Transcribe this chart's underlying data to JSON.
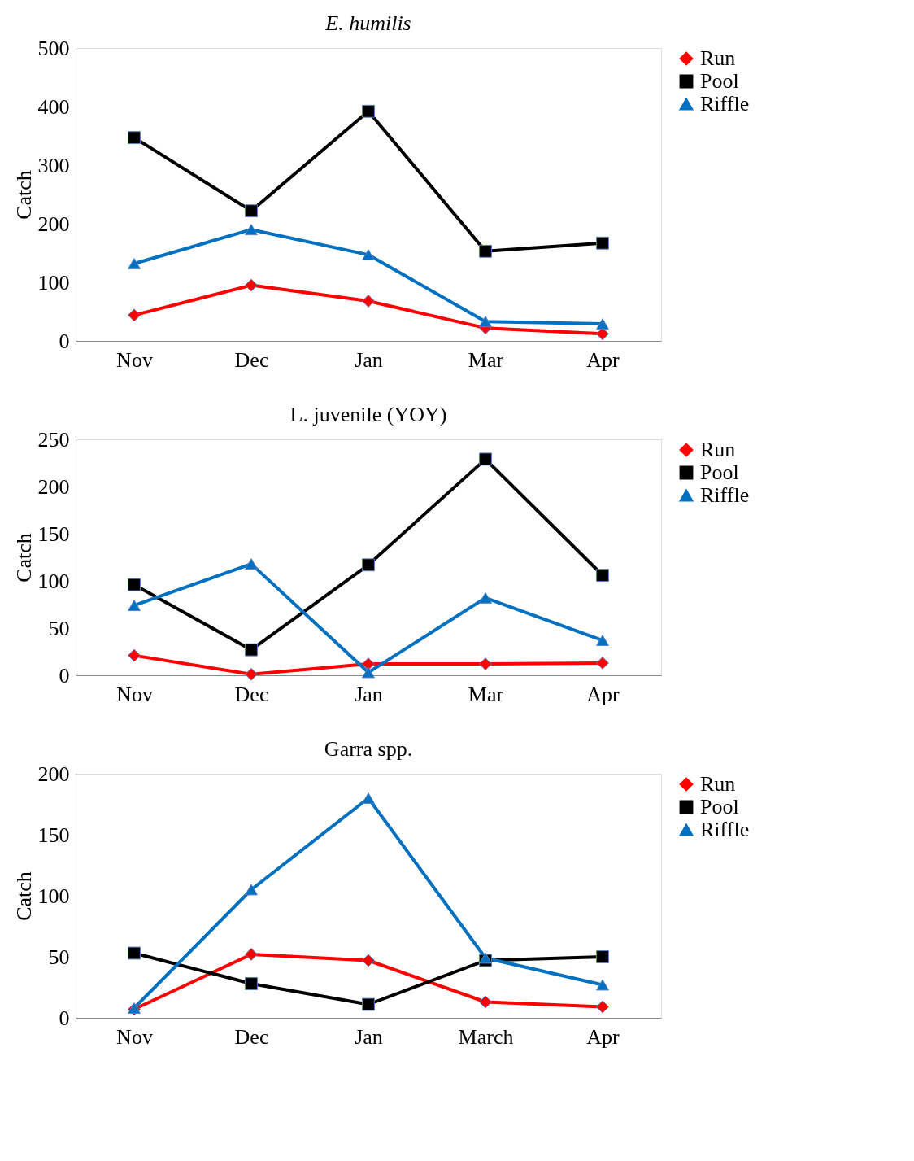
{
  "chart_data": [
    {
      "type": "line",
      "title": "E. humilis",
      "ylabel": "Catch",
      "categories": [
        "Nov",
        "Dec",
        "Jan",
        "Mar",
        "Apr"
      ],
      "ylim": [
        0,
        500
      ],
      "yticks": [
        0,
        100,
        200,
        300,
        400,
        500
      ],
      "grid": false,
      "legend": "right",
      "series": [
        {
          "name": "Run",
          "color": "#ff0000",
          "marker": "diamond",
          "values": [
            44,
            95,
            68,
            22,
            12
          ]
        },
        {
          "name": "Pool",
          "color": "#000000",
          "marker": "square",
          "values": [
            347,
            222,
            392,
            153,
            167
          ]
        },
        {
          "name": "Riffle",
          "color": "#0070c0",
          "marker": "triangle",
          "values": [
            132,
            190,
            147,
            33,
            29
          ]
        }
      ]
    },
    {
      "type": "line",
      "title": "L. juvenile (YOY)",
      "ylabel": "Catch",
      "categories": [
        "Nov",
        "Dec",
        "Jan",
        "Mar",
        "Apr"
      ],
      "ylim": [
        0,
        250
      ],
      "yticks": [
        0,
        50,
        100,
        150,
        200,
        250
      ],
      "grid": false,
      "legend": "right",
      "series": [
        {
          "name": "Run",
          "color": "#ff0000",
          "marker": "diamond",
          "values": [
            21,
            1,
            12,
            12,
            13
          ]
        },
        {
          "name": "Pool",
          "color": "#000000",
          "marker": "square",
          "values": [
            96,
            27,
            117,
            229,
            106
          ]
        },
        {
          "name": "Riffle",
          "color": "#0070c0",
          "marker": "triangle",
          "values": [
            74,
            118,
            3,
            82,
            37
          ]
        }
      ]
    },
    {
      "type": "line",
      "title": "Garra spp.",
      "ylabel": "Catch",
      "categories": [
        "Nov",
        "Dec",
        "Jan",
        "March",
        "Apr"
      ],
      "ylim": [
        0,
        200
      ],
      "yticks": [
        0,
        50,
        100,
        150,
        200
      ],
      "grid": false,
      "legend": "right",
      "series": [
        {
          "name": "Run",
          "color": "#ff0000",
          "marker": "diamond",
          "values": [
            7,
            52,
            47,
            13,
            9
          ]
        },
        {
          "name": "Pool",
          "color": "#000000",
          "marker": "square",
          "values": [
            53,
            28,
            11,
            47,
            50
          ]
        },
        {
          "name": "Riffle",
          "color": "#0070c0",
          "marker": "triangle",
          "values": [
            8,
            105,
            180,
            49,
            27
          ]
        }
      ]
    }
  ]
}
